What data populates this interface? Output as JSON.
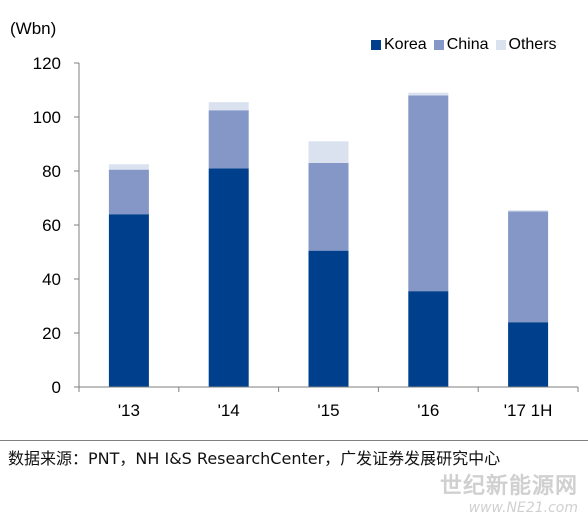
{
  "chart_data": {
    "type": "bar",
    "stacked": true,
    "unit": "(Wbn)",
    "categories": [
      "'13",
      "'14",
      "'15",
      "'16",
      "'17 1H"
    ],
    "series": [
      {
        "name": "Korea",
        "color": "#003f8c",
        "values": [
          64,
          81,
          50.5,
          35.5,
          24
        ]
      },
      {
        "name": "China",
        "color": "#8497c7",
        "values": [
          16.5,
          21.5,
          32.5,
          72.5,
          41
        ]
      },
      {
        "name": "Others",
        "color": "#dbe2ef",
        "values": [
          2,
          3,
          8,
          1,
          0.5
        ]
      }
    ],
    "ylim": [
      0,
      120
    ],
    "yticks": [
      0,
      20,
      40,
      60,
      80,
      100,
      120
    ],
    "grid": false,
    "legend_position": "top-right"
  },
  "source_note": "数据来源：PNT，NH I&S ResearchCenter，广发证券发展研究中心",
  "watermark": {
    "line1": "世纪新能源网",
    "line2": "www.NE21.com"
  }
}
